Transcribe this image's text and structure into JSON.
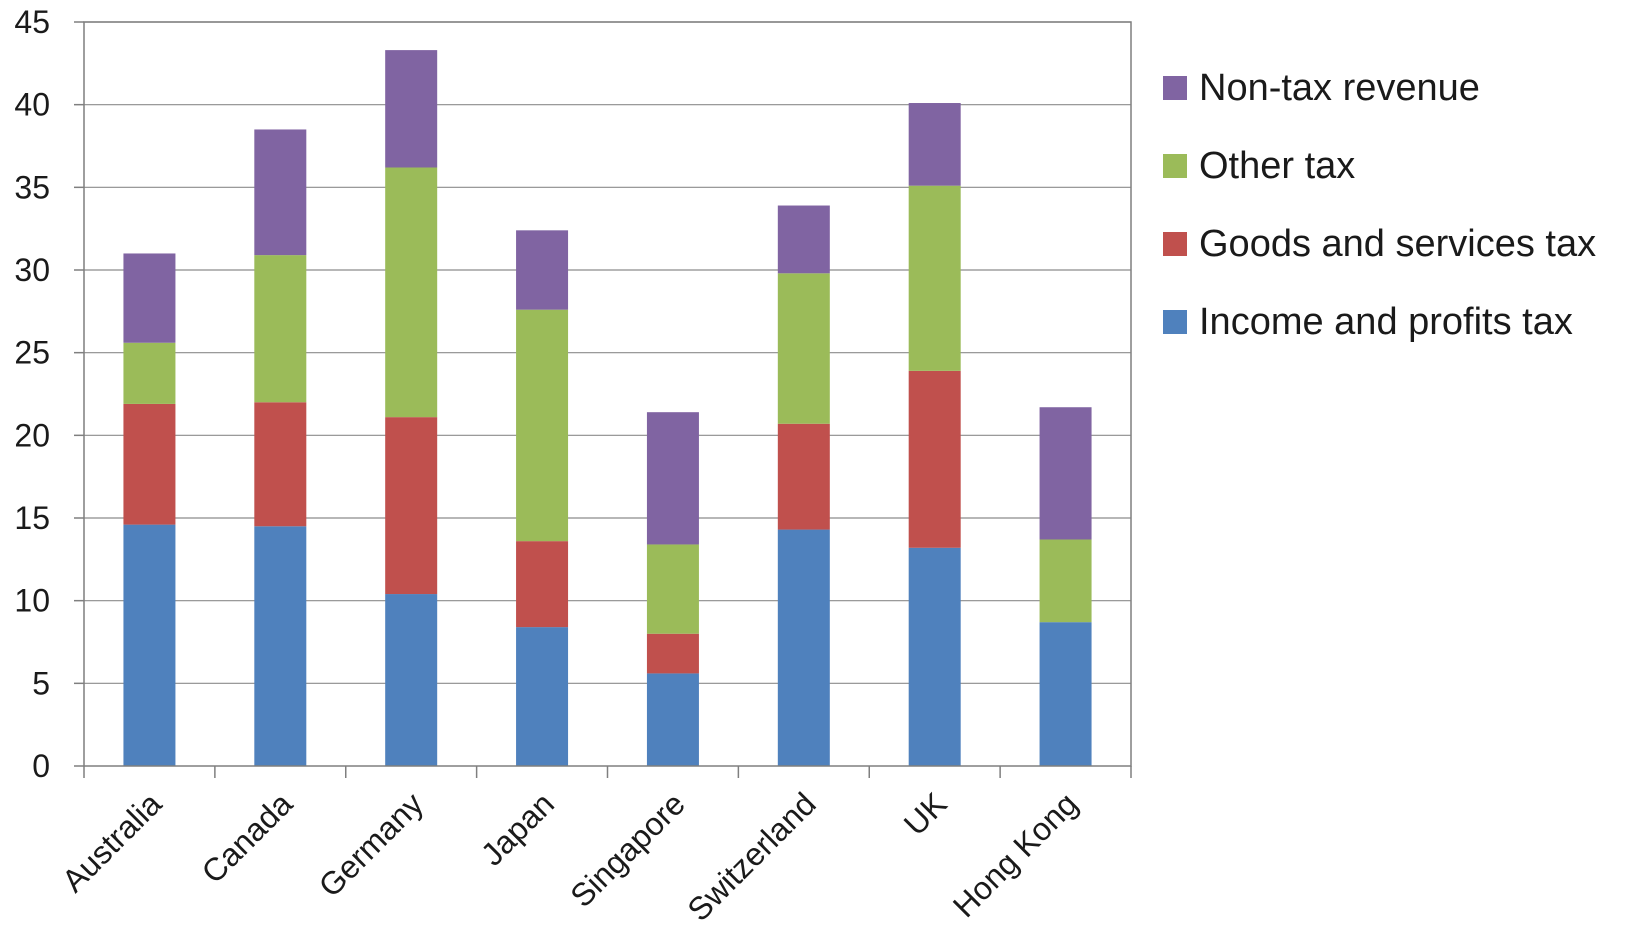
{
  "chart_data": {
    "type": "bar",
    "stacked": true,
    "categories": [
      "Australia",
      "Canada",
      "Germany",
      "Japan",
      "Singapore",
      "Switzerland",
      "UK",
      "Hong Kong"
    ],
    "series": [
      {
        "name": "Income and profits tax",
        "color": "#4f81bd",
        "values": [
          14.6,
          14.5,
          10.4,
          8.4,
          5.6,
          14.3,
          13.2,
          8.7
        ]
      },
      {
        "name": "Goods and services tax",
        "color": "#c0504d",
        "values": [
          7.3,
          7.5,
          10.7,
          5.2,
          2.4,
          6.4,
          10.7,
          0
        ]
      },
      {
        "name": "Other tax",
        "color": "#9bbb59",
        "values": [
          3.7,
          8.9,
          15.1,
          14.0,
          5.4,
          9.1,
          11.2,
          5.0
        ]
      },
      {
        "name": "Non-tax revenue",
        "color": "#8064a2",
        "values": [
          5.4,
          7.6,
          7.1,
          4.8,
          8.0,
          4.1,
          5.0,
          8.0
        ]
      }
    ],
    "ylim": [
      0,
      45
    ],
    "yticks": [
      "0",
      "5",
      "10",
      "15",
      "20",
      "25",
      "30",
      "35",
      "40",
      "45"
    ],
    "grid": true,
    "legend_position": "right",
    "title": "",
    "xlabel": "",
    "ylabel": ""
  }
}
